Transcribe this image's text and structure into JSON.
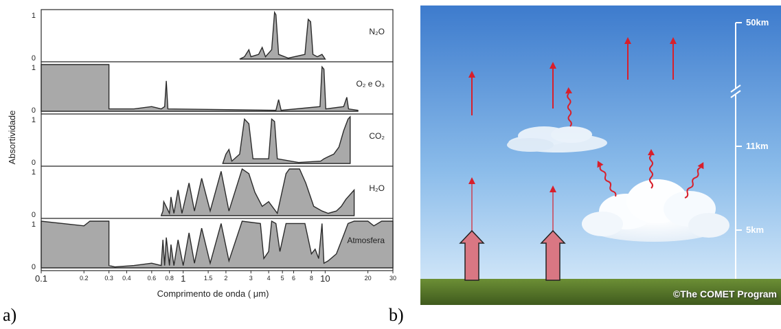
{
  "panel_a": {
    "caption": "a)",
    "ylabel": "Absortividade",
    "xlabel": "Comprimento de onda ( μm)",
    "x_ticks": [
      "0.1",
      "0.2",
      "0.3",
      "0.4",
      "0.6",
      "0.8",
      "1",
      "1.5",
      "2",
      "3",
      "4",
      "5",
      "6",
      "8",
      "10",
      "20",
      "30"
    ],
    "rows": [
      {
        "gas": "N₂O",
        "tick_top": "1",
        "tick_bottom": "0"
      },
      {
        "gas": "O₂ e O₃",
        "tick_top": "1",
        "tick_bottom": "0"
      },
      {
        "gas": "CO₂",
        "tick_top": "1",
        "tick_bottom": "0"
      },
      {
        "gas": "H₂O",
        "tick_top": "1",
        "tick_bottom": "0"
      },
      {
        "gas": "Atmosfera",
        "tick_top": "1",
        "tick_bottom": "0"
      }
    ],
    "fill_color": "#a9a9a9",
    "line_color": "#2a2a2a"
  },
  "panel_b": {
    "caption": "b)",
    "altitudes": [
      "50km",
      "11km",
      "5km"
    ],
    "copyright": "©The COMET Program",
    "colors": {
      "sky_top": "#3f7fd0",
      "sky_bottom": "#bfdcf6",
      "ground": "#587a2c",
      "arrow": "#d81f2b",
      "big_arrow": "#d97783"
    }
  }
}
